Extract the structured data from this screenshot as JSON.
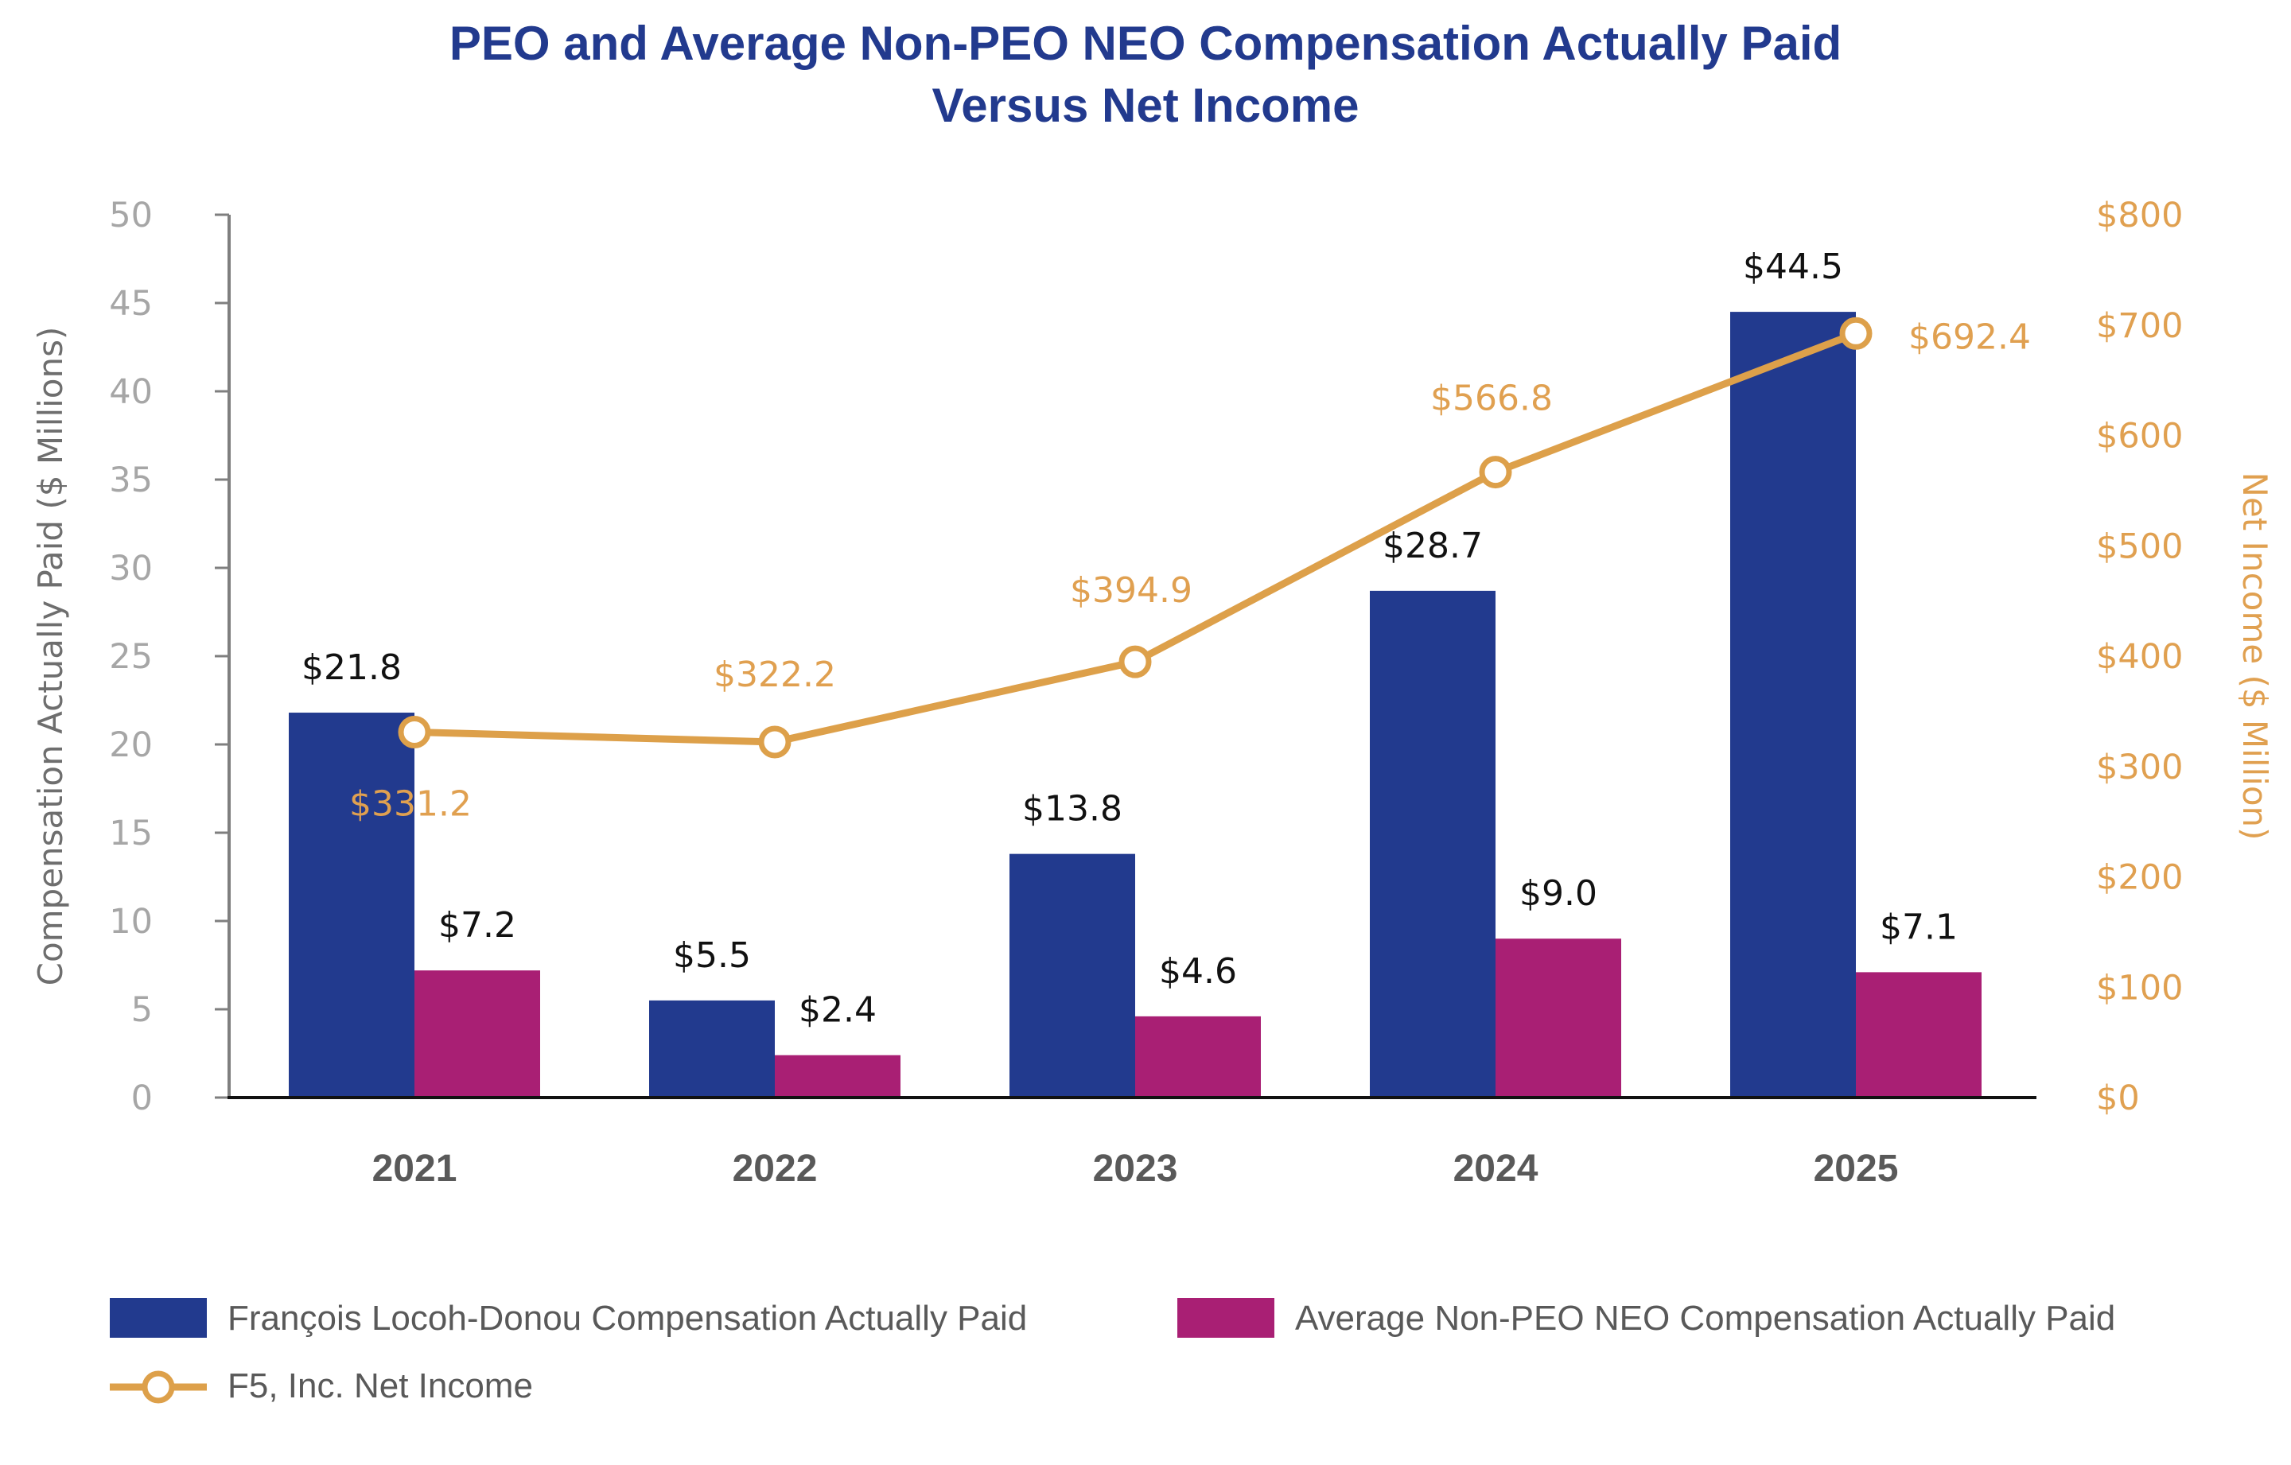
{
  "chart_data": {
    "type": "bar",
    "title_line1": "PEO and Average Non-PEO NEO Compensation Actually Paid",
    "title_line2": "Versus Net Income",
    "categories": [
      "2021",
      "2022",
      "2023",
      "2024",
      "2025"
    ],
    "series": [
      {
        "name": "François Locoh-Donou Compensation Actually Paid",
        "axis": "left",
        "color": "#223a8e",
        "values": [
          21.8,
          5.5,
          13.8,
          28.7,
          44.5
        ],
        "labels": [
          "$21.8",
          "$5.5",
          "$13.8",
          "$28.7",
          "$44.5"
        ]
      },
      {
        "name": "Average Non-PEO NEO Compensation Actually Paid",
        "axis": "left",
        "color": "#a91f74",
        "values": [
          7.2,
          2.4,
          4.6,
          9.0,
          7.1
        ],
        "labels": [
          "$7.2",
          "$2.4",
          "$4.6",
          "$9.0",
          "$7.1"
        ]
      },
      {
        "name": "F5, Inc. Net Income",
        "axis": "right",
        "type": "line",
        "color": "#dda04a",
        "values": [
          331.2,
          322.2,
          394.9,
          566.8,
          692.4
        ],
        "labels": [
          "$331.2",
          "$322.2",
          "$394.9",
          "$566.8",
          "$692.4"
        ]
      }
    ],
    "ylabel": "Compensation Actually Paid ($ Millions)",
    "ylim": [
      0,
      50
    ],
    "yticks": [
      "0",
      "5",
      "10",
      "15",
      "20",
      "25",
      "30",
      "35",
      "40",
      "45",
      "50"
    ],
    "y2label": "Net Income ($ Million)",
    "y2lim": [
      0,
      800
    ],
    "y2ticks": [
      "$0",
      "$100",
      "$200",
      "$300",
      "$400",
      "$500",
      "$600",
      "$700",
      "$800"
    ],
    "legend_position": "bottom"
  }
}
